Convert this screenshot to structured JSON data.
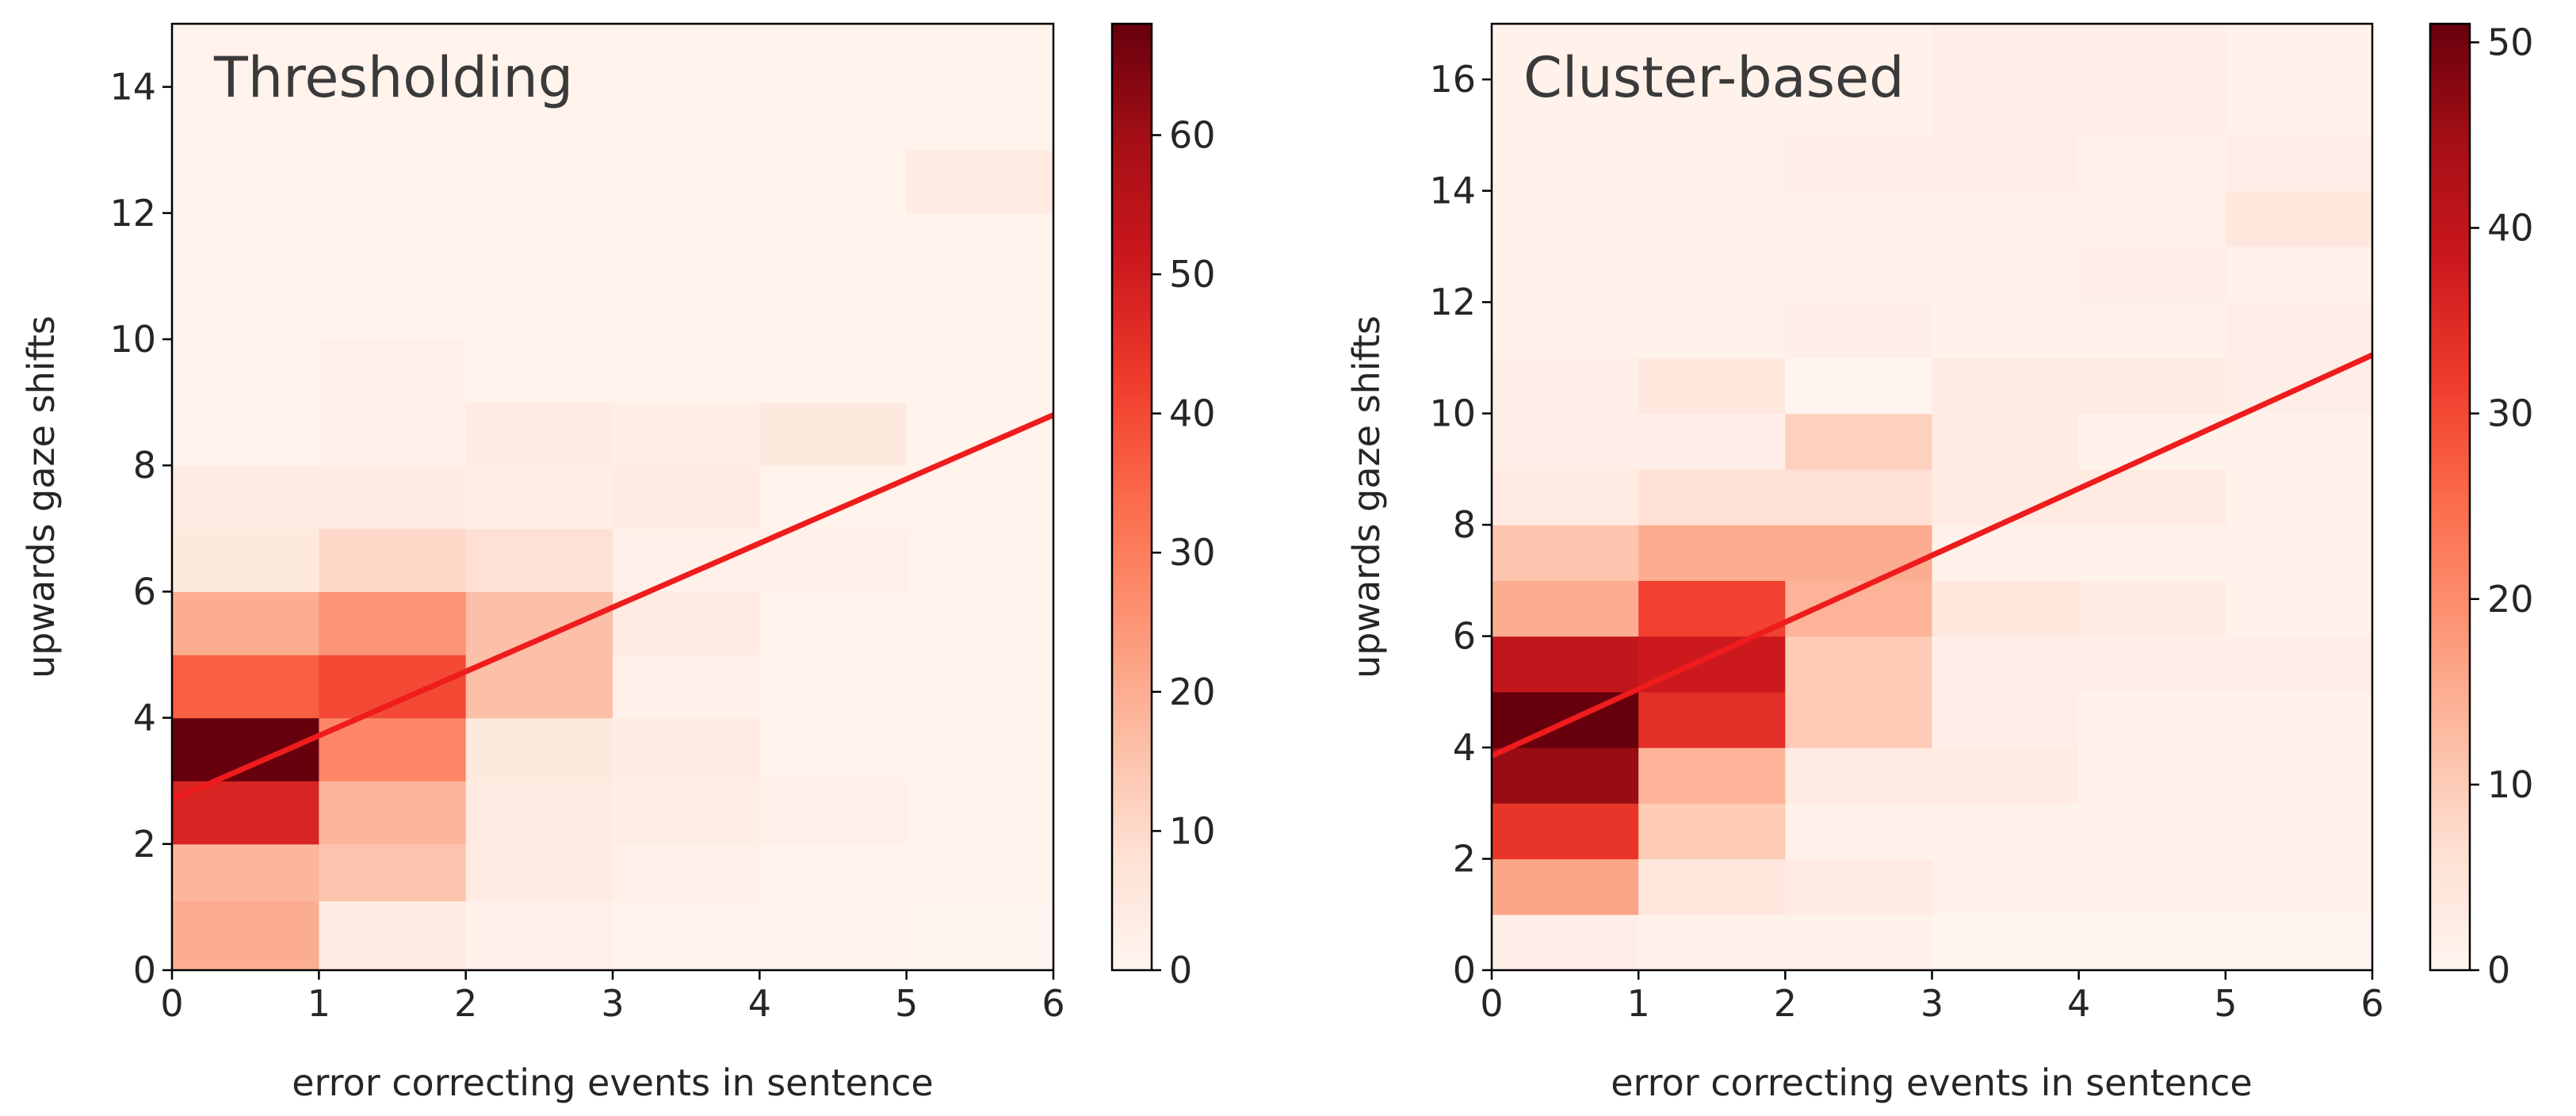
{
  "chart_data": [
    {
      "type": "heatmap",
      "title": "Thresholding",
      "xlabel": "error correcting events in sentence",
      "ylabel": "upwards gaze shifts",
      "xlim": [
        0,
        6
      ],
      "ylim": [
        0,
        15
      ],
      "x_edges": [
        0,
        1,
        2,
        3,
        4,
        5,
        6
      ],
      "y_edges": [
        0,
        1.1,
        2.0,
        3.0,
        4.0,
        5.0,
        6.0,
        7.0,
        8.0,
        9.0,
        10.0,
        11.0,
        12.0,
        13.0,
        14.0,
        15.0
      ],
      "x_ticks": [
        0,
        1,
        2,
        3,
        4,
        5,
        6
      ],
      "y_ticks": [
        0,
        2,
        4,
        6,
        8,
        10,
        12,
        14
      ],
      "colormap": "Reds",
      "color_range": [
        0,
        68
      ],
      "colorbar_ticks": [
        0,
        10,
        20,
        30,
        40,
        50,
        60
      ],
      "counts": [
        [
          20,
          4,
          2,
          1,
          1,
          0
        ],
        [
          18,
          15,
          4,
          2,
          1,
          1
        ],
        [
          48,
          18,
          4,
          3,
          2,
          1
        ],
        [
          68,
          28,
          5,
          4,
          1,
          1
        ],
        [
          36,
          40,
          16,
          2,
          1,
          1
        ],
        [
          20,
          25,
          16,
          4,
          1,
          1
        ],
        [
          5,
          10,
          8,
          2,
          2,
          1
        ],
        [
          4,
          4,
          3,
          4,
          1,
          1
        ],
        [
          1,
          2,
          4,
          3,
          5,
          1
        ],
        [
          1,
          2,
          1,
          1,
          1,
          1
        ],
        [
          1,
          1,
          1,
          1,
          1,
          1
        ],
        [
          1,
          1,
          1,
          1,
          1,
          1
        ],
        [
          1,
          1,
          1,
          1,
          1,
          4
        ],
        [
          1,
          1,
          1,
          1,
          1,
          1
        ],
        [
          1,
          1,
          1,
          1,
          1,
          1
        ]
      ],
      "regression_line": {
        "x": [
          0,
          6
        ],
        "y": [
          2.7,
          8.8
        ],
        "color": "#ee1c1c"
      }
    },
    {
      "type": "heatmap",
      "title": "Cluster-based",
      "xlabel": "error correcting events in sentence",
      "ylabel": "upwards gaze shifts",
      "xlim": [
        0,
        6
      ],
      "ylim": [
        0,
        17
      ],
      "x_edges": [
        0,
        1,
        2,
        3,
        4,
        5,
        6
      ],
      "y_edges": [
        0,
        1.0,
        2.0,
        3.0,
        4.0,
        5.0,
        6.0,
        7.0,
        8.0,
        9.0,
        10.0,
        11.0,
        12.0,
        13.0,
        14.0,
        15.0,
        16.0,
        17.0
      ],
      "x_ticks": [
        0,
        1,
        2,
        3,
        4,
        5,
        6
      ],
      "y_ticks": [
        0,
        2,
        4,
        6,
        8,
        10,
        12,
        14,
        16
      ],
      "colormap": "Reds",
      "color_range": [
        0,
        51
      ],
      "colorbar_ticks": [
        0,
        10,
        20,
        30,
        40,
        50
      ],
      "counts": [
        [
          2,
          1,
          1,
          0,
          0,
          0
        ],
        [
          16,
          4,
          3,
          1,
          1,
          1
        ],
        [
          33,
          10,
          1,
          1,
          1,
          1
        ],
        [
          46,
          14,
          3,
          3,
          1,
          1
        ],
        [
          51,
          34,
          10,
          2,
          1,
          1
        ],
        [
          40,
          38,
          10,
          2,
          2,
          2
        ],
        [
          15,
          31,
          14,
          4,
          3,
          1
        ],
        [
          11,
          15,
          15,
          1,
          1,
          1
        ],
        [
          3,
          6,
          6,
          3,
          3,
          1
        ],
        [
          2,
          2,
          9,
          3,
          1,
          1
        ],
        [
          2,
          4,
          0,
          3,
          3,
          2
        ],
        [
          1,
          1,
          2,
          1,
          1,
          2
        ],
        [
          1,
          1,
          1,
          1,
          2,
          1
        ],
        [
          1,
          1,
          1,
          1,
          1,
          4
        ],
        [
          1,
          1,
          2,
          2,
          1,
          2
        ],
        [
          1,
          1,
          1,
          2,
          2,
          1
        ],
        [
          1,
          1,
          1,
          2,
          2,
          1
        ]
      ],
      "regression_line": {
        "x": [
          0,
          6
        ],
        "y": [
          3.85,
          11.05
        ],
        "color": "#ee1c1c"
      }
    }
  ]
}
